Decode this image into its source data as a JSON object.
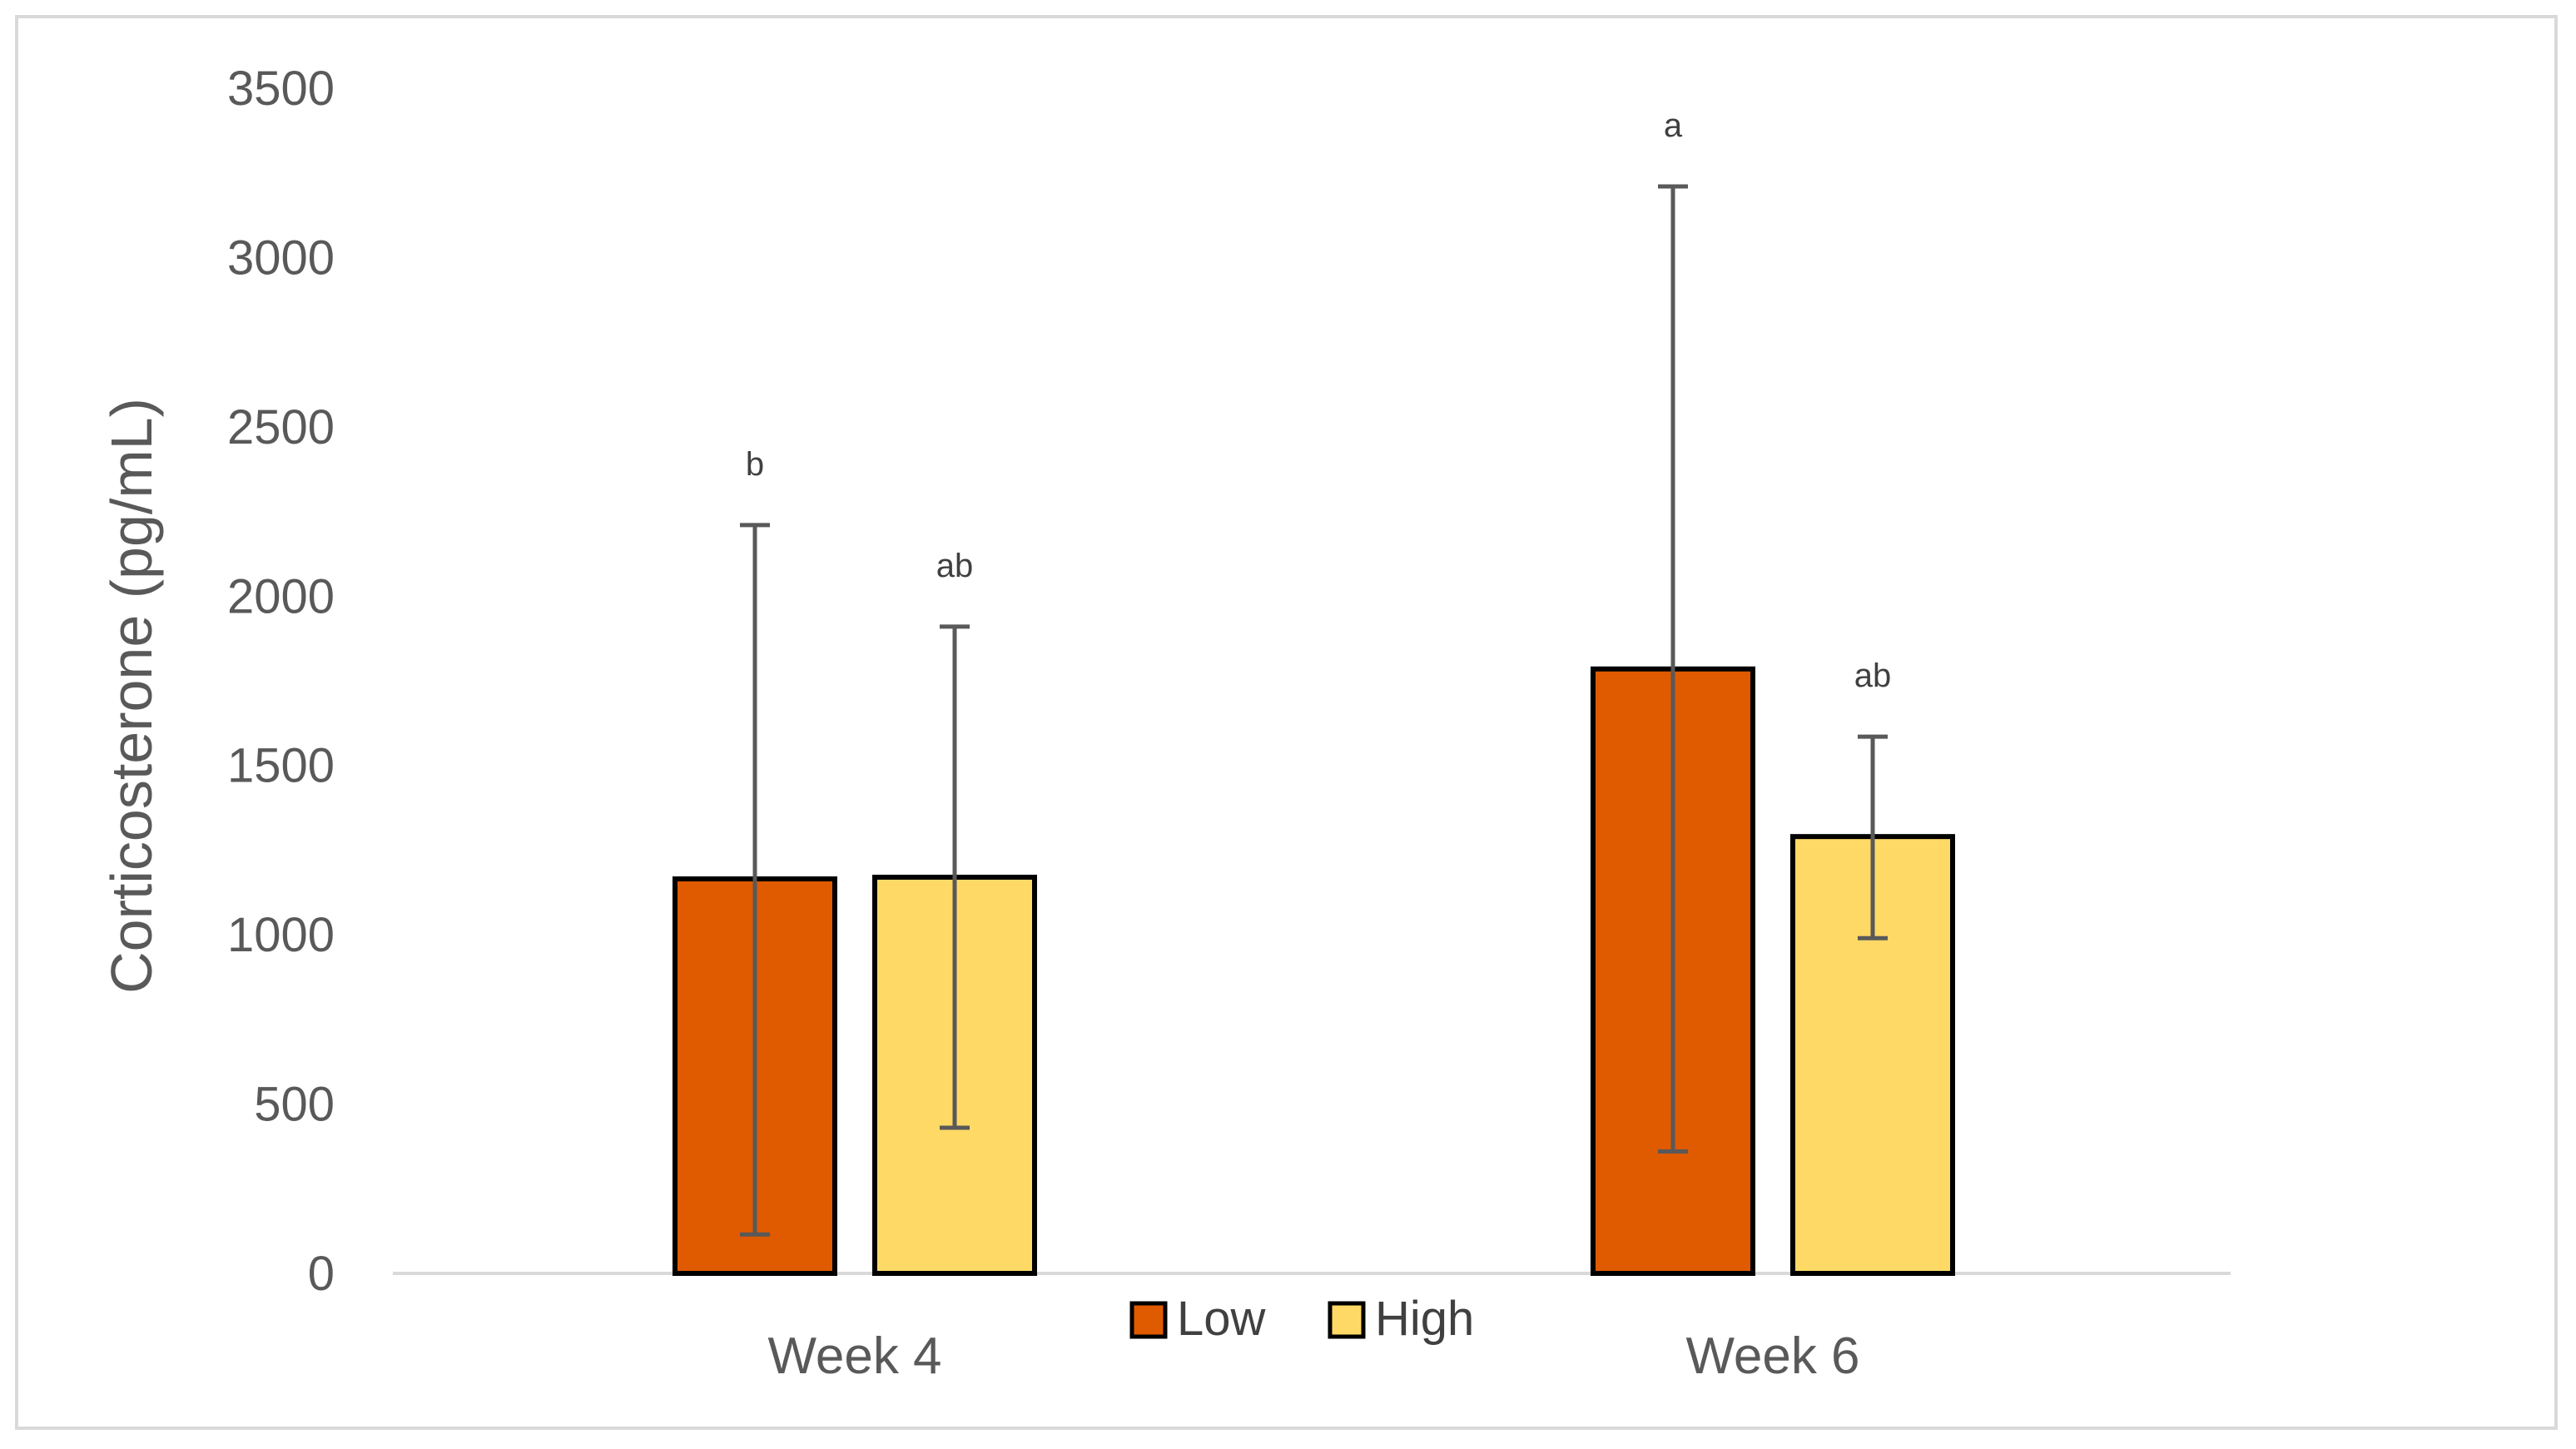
{
  "chart_data": {
    "type": "bar",
    "categories": [
      "Week 4",
      "Week 6"
    ],
    "series": [
      {
        "name": "Low",
        "color": "#e05a00",
        "values": [
          1165,
          1785
        ],
        "error_low": [
          115,
          360
        ],
        "error_high": [
          2210,
          3210
        ],
        "labels": [
          "b",
          "a"
        ]
      },
      {
        "name": "High",
        "color": "#ffd966",
        "values": [
          1170,
          1290
        ],
        "error_low": [
          430,
          990
        ],
        "error_high": [
          1910,
          1585
        ],
        "labels": [
          "ab",
          "ab"
        ]
      }
    ],
    "ylabel": "Corticosterone (pg/mL)",
    "xlabel": "",
    "title": "",
    "ylim": [
      0,
      3500
    ],
    "yticks": [
      "0",
      "500",
      "1000",
      "1500",
      "2000",
      "2500",
      "3000",
      "3500"
    ],
    "grid": false,
    "legend_position": "bottom"
  }
}
